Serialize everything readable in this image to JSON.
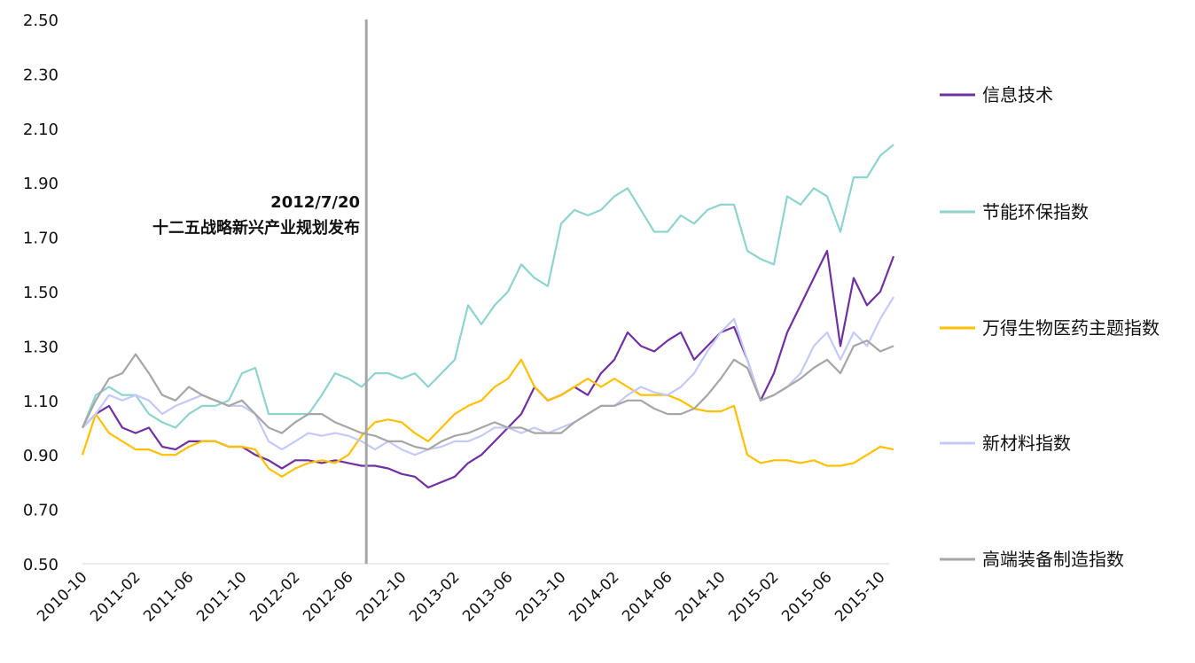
{
  "chart_data": {
    "type": "line",
    "title": "",
    "xlabel": "",
    "ylabel": "",
    "x_start": "2010-10",
    "x_frequency": "monthly",
    "x_tick_labels": [
      "2010-10",
      "2011-02",
      "2011-06",
      "2011-10",
      "2012-02",
      "2012-06",
      "2012-10",
      "2013-02",
      "2013-06",
      "2013-10",
      "2014-02",
      "2014-06",
      "2014-10",
      "2015-02",
      "2015-06",
      "2015-10"
    ],
    "ylim": [
      0.5,
      2.5
    ],
    "y_ticks": [
      "0.50",
      "0.70",
      "0.90",
      "1.10",
      "1.30",
      "1.50",
      "1.70",
      "1.90",
      "2.10",
      "2.30",
      "2.50"
    ],
    "grid": false,
    "legend_position": "right",
    "annotation": {
      "date": "2012-07-20",
      "label_date": "2012/7/20",
      "label_text": "十二五战略新兴产业规划发布",
      "color": "#a6a6a6"
    },
    "series": [
      {
        "name": "信息技术",
        "color": "#7030a0",
        "values": [
          1.0,
          1.05,
          1.08,
          1.0,
          0.98,
          1.0,
          0.93,
          0.92,
          0.95,
          0.95,
          0.95,
          0.93,
          0.93,
          0.9,
          0.88,
          0.85,
          0.88,
          0.88,
          0.87,
          0.88,
          0.87,
          0.86,
          0.86,
          0.85,
          0.83,
          0.82,
          0.78,
          0.8,
          0.82,
          0.87,
          0.9,
          0.95,
          1.0,
          1.05,
          1.15,
          1.1,
          1.12,
          1.15,
          1.12,
          1.2,
          1.25,
          1.35,
          1.3,
          1.28,
          1.32,
          1.35,
          1.25,
          1.3,
          1.35,
          1.37,
          1.25,
          1.1,
          1.2,
          1.35,
          1.45,
          1.55,
          1.65,
          1.3,
          1.55,
          1.45,
          1.5,
          1.63
        ]
      },
      {
        "name": "节能环保指数",
        "color": "#8ed3cd",
        "values": [
          1.0,
          1.12,
          1.15,
          1.12,
          1.12,
          1.05,
          1.02,
          1.0,
          1.05,
          1.08,
          1.08,
          1.1,
          1.2,
          1.22,
          1.05,
          1.05,
          1.05,
          1.05,
          1.12,
          1.2,
          1.18,
          1.15,
          1.2,
          1.2,
          1.18,
          1.2,
          1.15,
          1.2,
          1.25,
          1.45,
          1.38,
          1.45,
          1.5,
          1.6,
          1.55,
          1.52,
          1.75,
          1.8,
          1.78,
          1.8,
          1.85,
          1.88,
          1.8,
          1.72,
          1.72,
          1.78,
          1.75,
          1.8,
          1.82,
          1.82,
          1.65,
          1.62,
          1.6,
          1.85,
          1.82,
          1.88,
          1.85,
          1.72,
          1.92,
          1.92,
          2.0,
          2.04
        ]
      },
      {
        "name": "万得生物医药主题指数",
        "color": "#ffc000",
        "values": [
          0.9,
          1.05,
          0.98,
          0.95,
          0.92,
          0.92,
          0.9,
          0.9,
          0.93,
          0.95,
          0.95,
          0.93,
          0.93,
          0.92,
          0.85,
          0.82,
          0.85,
          0.87,
          0.88,
          0.87,
          0.9,
          0.97,
          1.02,
          1.03,
          1.02,
          0.98,
          0.95,
          1.0,
          1.05,
          1.08,
          1.1,
          1.15,
          1.18,
          1.25,
          1.15,
          1.1,
          1.12,
          1.15,
          1.18,
          1.15,
          1.18,
          1.15,
          1.12,
          1.12,
          1.12,
          1.1,
          1.07,
          1.06,
          1.06,
          1.08,
          0.9,
          0.87,
          0.88,
          0.88,
          0.87,
          0.88,
          0.86,
          0.86,
          0.87,
          0.9,
          0.93,
          0.92
        ]
      },
      {
        "name": "新材料指数",
        "color": "#c5c9f7",
        "values": [
          1.0,
          1.05,
          1.12,
          1.1,
          1.12,
          1.1,
          1.05,
          1.08,
          1.1,
          1.12,
          1.1,
          1.08,
          1.08,
          1.05,
          0.95,
          0.92,
          0.95,
          0.98,
          0.97,
          0.98,
          0.97,
          0.95,
          0.92,
          0.95,
          0.92,
          0.9,
          0.92,
          0.93,
          0.95,
          0.95,
          0.97,
          1.0,
          1.0,
          0.98,
          1.0,
          0.98,
          1.0,
          1.02,
          1.05,
          1.08,
          1.08,
          1.12,
          1.15,
          1.13,
          1.12,
          1.15,
          1.2,
          1.28,
          1.35,
          1.4,
          1.25,
          1.1,
          1.12,
          1.15,
          1.2,
          1.3,
          1.35,
          1.25,
          1.35,
          1.3,
          1.4,
          1.48
        ]
      },
      {
        "name": "高端装备制造指数",
        "color": "#a6a6a6",
        "values": [
          1.0,
          1.1,
          1.18,
          1.2,
          1.27,
          1.2,
          1.12,
          1.1,
          1.15,
          1.12,
          1.1,
          1.08,
          1.1,
          1.05,
          1.0,
          0.98,
          1.02,
          1.05,
          1.05,
          1.02,
          1.0,
          0.98,
          0.97,
          0.95,
          0.95,
          0.93,
          0.92,
          0.95,
          0.97,
          0.98,
          1.0,
          1.02,
          1.0,
          1.0,
          0.98,
          0.98,
          0.98,
          1.02,
          1.05,
          1.08,
          1.08,
          1.1,
          1.1,
          1.07,
          1.05,
          1.05,
          1.07,
          1.12,
          1.18,
          1.25,
          1.22,
          1.1,
          1.12,
          1.15,
          1.18,
          1.22,
          1.25,
          1.2,
          1.3,
          1.32,
          1.28,
          1.3
        ]
      }
    ]
  }
}
